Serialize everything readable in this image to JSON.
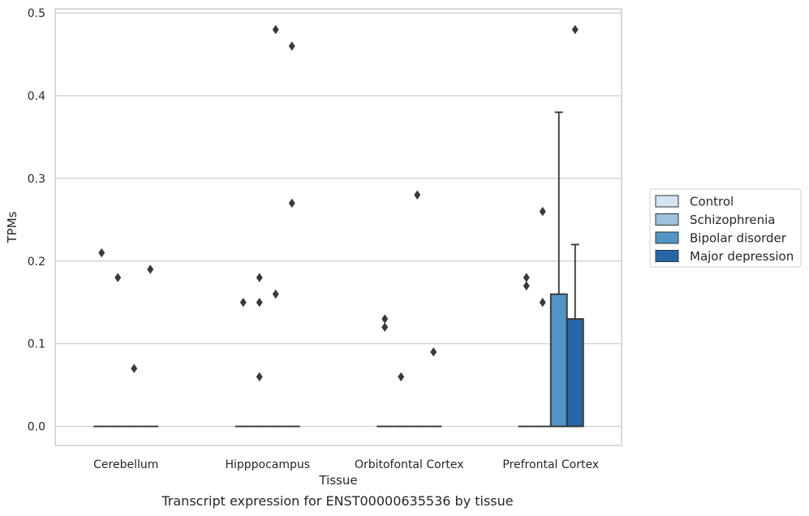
{
  "chart_data": {
    "type": "box",
    "caption": "Transcript expression for ENST00000635536 by tissue",
    "xlabel": "Tissue",
    "ylabel": "TPMs",
    "ylim": [
      -0.023,
      0.505
    ],
    "yticks": [
      "0.0",
      "0.1",
      "0.2",
      "0.3",
      "0.4",
      "0.5"
    ],
    "ytick_values": [
      0.0,
      0.1,
      0.2,
      0.3,
      0.4,
      0.5
    ],
    "grid": true,
    "legend_position": "right",
    "categories": [
      "Cerebellum",
      "Hipppocampus",
      "Orbitofontal Cortex",
      "Prefrontal Cortex"
    ],
    "series": [
      {
        "name": "Control",
        "color": "#d4e4f2",
        "boxes": [
          {
            "median": 0.0,
            "q1": 0.0,
            "q3": 0.0,
            "whisker_low": 0.0,
            "whisker_high": 0.0,
            "outliers": [
              0.21
            ]
          },
          {
            "median": 0.0,
            "q1": 0.0,
            "q3": 0.0,
            "whisker_low": 0.0,
            "whisker_high": 0.0,
            "outliers": [
              0.15
            ]
          },
          {
            "median": 0.0,
            "q1": 0.0,
            "q3": 0.0,
            "whisker_low": 0.0,
            "whisker_high": 0.0,
            "outliers": [
              0.13,
              0.12
            ]
          },
          {
            "median": 0.0,
            "q1": 0.0,
            "q3": 0.0,
            "whisker_low": 0.0,
            "whisker_high": 0.0,
            "outliers": [
              0.18,
              0.17
            ]
          }
        ]
      },
      {
        "name": "Schizophrenia",
        "color": "#9cc3de",
        "boxes": [
          {
            "median": 0.0,
            "q1": 0.0,
            "q3": 0.0,
            "whisker_low": 0.0,
            "whisker_high": 0.0,
            "outliers": [
              0.18
            ]
          },
          {
            "median": 0.0,
            "q1": 0.0,
            "q3": 0.0,
            "whisker_low": 0.0,
            "whisker_high": 0.0,
            "outliers": [
              0.18,
              0.15,
              0.06
            ]
          },
          {
            "median": 0.0,
            "q1": 0.0,
            "q3": 0.0,
            "whisker_low": 0.0,
            "whisker_high": 0.0,
            "outliers": [
              0.06
            ]
          },
          {
            "median": 0.0,
            "q1": 0.0,
            "q3": 0.0,
            "whisker_low": 0.0,
            "whisker_high": 0.0,
            "outliers": [
              0.26,
              0.15
            ]
          }
        ]
      },
      {
        "name": "Bipolar disorder",
        "color": "#5196c6",
        "boxes": [
          {
            "median": 0.0,
            "q1": 0.0,
            "q3": 0.0,
            "whisker_low": 0.0,
            "whisker_high": 0.0,
            "outliers": [
              0.07
            ]
          },
          {
            "median": 0.0,
            "q1": 0.0,
            "q3": 0.0,
            "whisker_low": 0.0,
            "whisker_high": 0.0,
            "outliers": [
              0.48,
              0.16
            ]
          },
          {
            "median": 0.0,
            "q1": 0.0,
            "q3": 0.0,
            "whisker_low": 0.0,
            "whisker_high": 0.0,
            "outliers": [
              0.28
            ]
          },
          {
            "median": 0.0,
            "q1": 0.0,
            "q3": 0.16,
            "whisker_low": 0.0,
            "whisker_high": 0.38,
            "outliers": []
          }
        ]
      },
      {
        "name": "Major depression",
        "color": "#2566a8",
        "boxes": [
          {
            "median": 0.0,
            "q1": 0.0,
            "q3": 0.0,
            "whisker_low": 0.0,
            "whisker_high": 0.0,
            "outliers": [
              0.19
            ]
          },
          {
            "median": 0.0,
            "q1": 0.0,
            "q3": 0.0,
            "whisker_low": 0.0,
            "whisker_high": 0.0,
            "outliers": [
              0.46,
              0.27
            ]
          },
          {
            "median": 0.0,
            "q1": 0.0,
            "q3": 0.0,
            "whisker_low": 0.0,
            "whisker_high": 0.0,
            "outliers": [
              0.09
            ]
          },
          {
            "median": 0.0,
            "q1": 0.0,
            "q3": 0.13,
            "whisker_low": 0.0,
            "whisker_high": 0.22,
            "outliers": [
              0.48
            ]
          }
        ]
      }
    ],
    "colors": {
      "line": "#333333",
      "grid": "#cccccc",
      "frame": "#cccccc"
    }
  }
}
